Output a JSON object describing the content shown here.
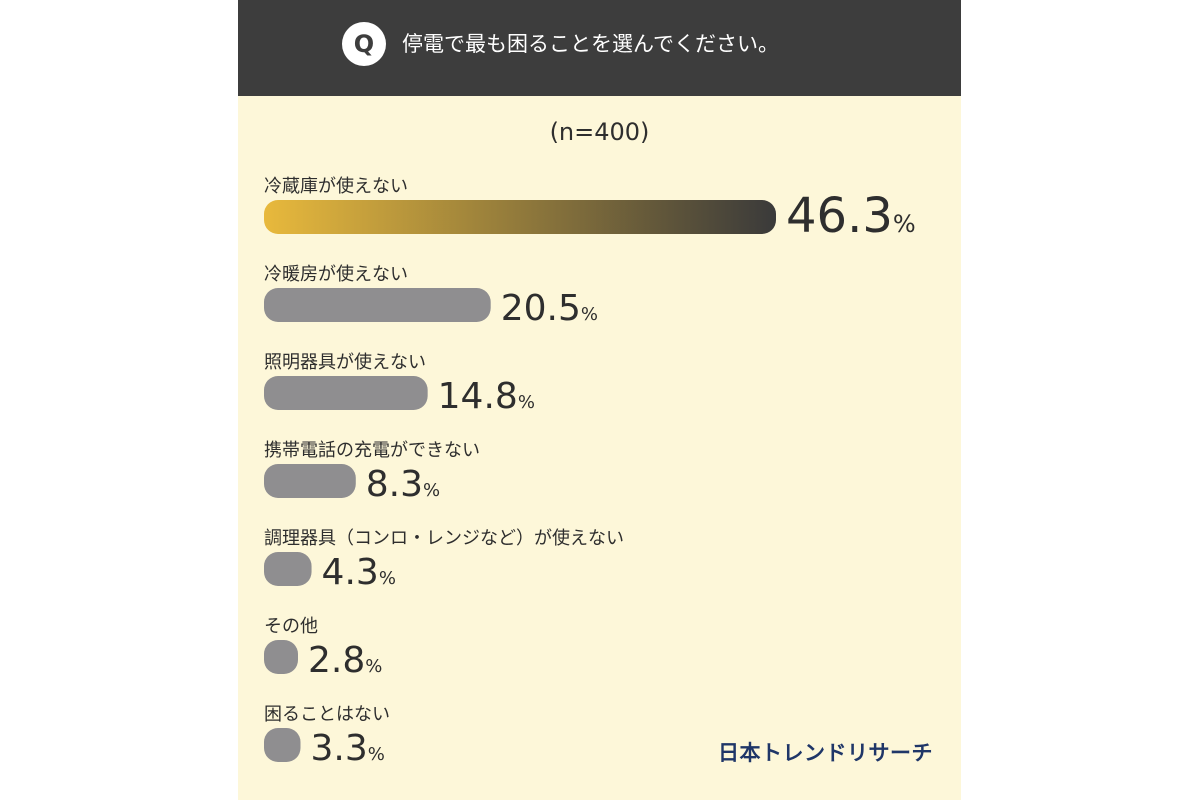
{
  "header": {
    "q_badge": "Q",
    "question": "停電で最も困ることを選んでください。"
  },
  "note": "(n=400)",
  "brand": "日本トレンドリサーチ",
  "colors": {
    "panel_bg": "#fdf7d9",
    "header_bg": "#3d3d3d",
    "bar_gray": "#8f8e90",
    "highlight_start": "#e8b93c",
    "highlight_end": "#3a3a3a",
    "text": "#2e2e2e",
    "brand": "#1f3668"
  },
  "chart_data": {
    "type": "bar",
    "orientation": "horizontal",
    "unit": "%",
    "categories": [
      "冷蔵庫が使えない",
      "冷暖房が使えない",
      "照明器具が使えない",
      "携帯電話の充電ができない",
      "調理器具（コンロ・レンジなど）が使えない",
      "その他",
      "困ることはない"
    ],
    "values": [
      46.3,
      20.5,
      14.8,
      8.3,
      4.3,
      2.8,
      3.3
    ],
    "value_labels": [
      "46.3",
      "20.5",
      "14.8",
      "8.3",
      "4.3",
      "2.8",
      "3.3"
    ],
    "highlight_index": 0,
    "xlim": [
      0,
      46.3
    ],
    "grid": false,
    "legend": "none"
  }
}
